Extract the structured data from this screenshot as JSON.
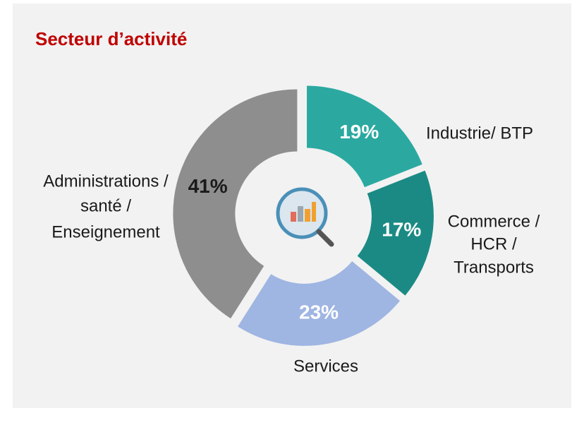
{
  "chart_data": {
    "type": "donut",
    "title": "Secteur d’activité",
    "categories": [
      [
        "Industrie/ BTP"
      ],
      [
        "Commerce /",
        "HCR /",
        "Transports"
      ],
      [
        "Services"
      ],
      [
        "Administrations /",
        "santé /",
        "Enseignement"
      ]
    ],
    "values": [
      19,
      17,
      23,
      41
    ],
    "value_labels": [
      "19%",
      "17%",
      "23%",
      "41%"
    ],
    "colors": [
      "#2ba9a1",
      "#1b8a84",
      "#9fb5e2",
      "#8e8e8e"
    ],
    "value_label_colors": [
      "#ffffff",
      "#ffffff",
      "#ffffff",
      "#1a1a1a"
    ]
  }
}
